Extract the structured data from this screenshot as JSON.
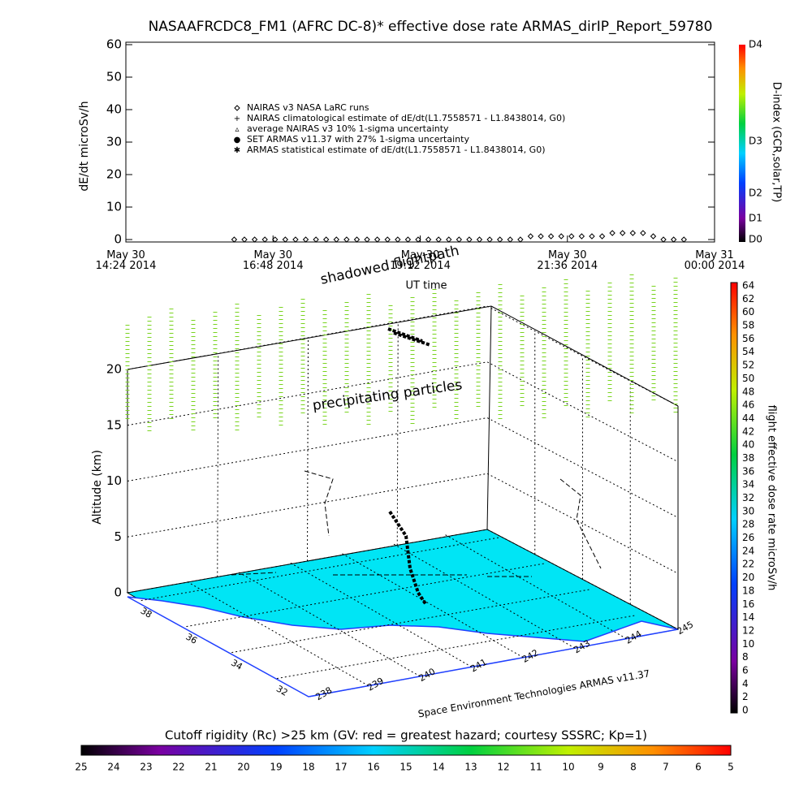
{
  "chart_data": [
    {
      "type": "scatter",
      "title": "NASAAFRCDC8_FM1 (AFRC DC-8)* effective dose rate ARMAS_dirIP_Report_59780",
      "ylabel": "dE/dt microSv/h",
      "xlabel": "UT time",
      "ylim": [
        0,
        60
      ],
      "yticks": [
        0,
        10,
        20,
        30,
        40,
        50,
        60
      ],
      "xlim": [
        "2014-05-30T14:24",
        "2014-05-31T00:00"
      ],
      "xticks": [
        {
          "value": "2014-05-30T14:24",
          "label": "May 30\n14:24 2014"
        },
        {
          "value": "2014-05-30T16:48",
          "label": "May 30\n16:48 2014"
        },
        {
          "value": "2014-05-30T19:12",
          "label": "May 30\n19:12 2014"
        },
        {
          "value": "2014-05-30T21:36",
          "label": "May 30\n21:36 2014"
        },
        {
          "value": "2014-05-31T00:00",
          "label": "May 31\n00:00 2014"
        }
      ],
      "x": [
        "2014-05-30T16:10",
        "2014-05-30T16:20",
        "2014-05-30T16:30",
        "2014-05-30T16:40",
        "2014-05-30T16:50",
        "2014-05-30T17:00",
        "2014-05-30T17:10",
        "2014-05-30T17:20",
        "2014-05-30T17:30",
        "2014-05-30T17:40",
        "2014-05-30T17:50",
        "2014-05-30T18:00",
        "2014-05-30T18:10",
        "2014-05-30T18:20",
        "2014-05-30T18:30",
        "2014-05-30T18:40",
        "2014-05-30T18:50",
        "2014-05-30T19:00",
        "2014-05-30T19:10",
        "2014-05-30T19:20",
        "2014-05-30T19:30",
        "2014-05-30T19:40",
        "2014-05-30T19:50",
        "2014-05-30T20:00",
        "2014-05-30T20:10",
        "2014-05-30T20:20",
        "2014-05-30T20:30",
        "2014-05-30T20:40",
        "2014-05-30T20:50",
        "2014-05-30T21:00",
        "2014-05-30T21:10",
        "2014-05-30T21:20",
        "2014-05-30T21:30",
        "2014-05-30T21:40",
        "2014-05-30T21:50",
        "2014-05-30T22:00",
        "2014-05-30T22:10",
        "2014-05-30T22:20",
        "2014-05-30T22:30",
        "2014-05-30T22:40",
        "2014-05-30T22:50",
        "2014-05-30T23:00",
        "2014-05-30T23:10",
        "2014-05-30T23:20",
        "2014-05-30T23:30"
      ],
      "series": [
        {
          "name": "NAIRAS v3 NASA LaRC runs",
          "color": "#000000",
          "values": [
            0,
            0,
            0,
            0,
            0,
            0,
            0,
            0,
            0,
            0,
            0,
            0,
            0,
            0,
            0,
            0,
            0,
            0,
            0,
            0,
            0,
            0,
            0,
            0,
            0,
            0,
            0,
            0,
            0,
            1,
            1,
            1,
            1,
            1,
            1,
            1,
            1,
            2,
            2,
            2,
            2,
            1,
            0,
            0,
            0
          ]
        }
      ],
      "legend_entries": [
        "NAIRAS climatological estimate of dE/dt(L1.7558571 - L1.8438014, G0)",
        "average NAIRAS v3 10% 1-sigma uncertainty",
        "SET ARMAS v11.37 with 27% 1-sigma uncertainty",
        "ARMAS statistical estimate of dE/dt(L1.7558571 - L1.8438014, G0)"
      ],
      "colorbar": {
        "label": "D-index (GCR,solar,TP)",
        "ticks": [
          "D0",
          "D1",
          "D2",
          "D3",
          "D4"
        ]
      }
    },
    {
      "type": "surface3d",
      "annotations": [
        "shadowed flightpath",
        "precipitating particles"
      ],
      "zlabel": "Altitude (km)",
      "zlim": [
        0,
        20
      ],
      "zticks": [
        0,
        5,
        10,
        15,
        20
      ],
      "yticks": [
        38,
        36,
        34,
        32
      ],
      "xticks": [
        238,
        239,
        240,
        241,
        242,
        243,
        244,
        245
      ],
      "credit": "Space Environment Technologies ARMAS v11.37",
      "colorbar": {
        "label": "flight effective dose rate microSv/h",
        "lim": [
          0,
          64
        ],
        "ticks": [
          0,
          2,
          4,
          6,
          8,
          10,
          12,
          14,
          16,
          18,
          20,
          22,
          24,
          26,
          28,
          30,
          32,
          34,
          36,
          38,
          40,
          42,
          44,
          46,
          48,
          50,
          52,
          54,
          56,
          58,
          60,
          62,
          64
        ]
      }
    },
    {
      "type": "colorbar",
      "label": "Cutoff rigidity (Rc) >25 km (GV: red = greatest hazard; courtesy SSSRC; Kp=1)",
      "lim": [
        25,
        5
      ],
      "ticks": [
        25,
        24,
        23,
        22,
        21,
        20,
        19,
        18,
        17,
        16,
        15,
        14,
        13,
        12,
        11,
        10,
        9,
        8,
        7,
        6,
        5
      ]
    }
  ]
}
